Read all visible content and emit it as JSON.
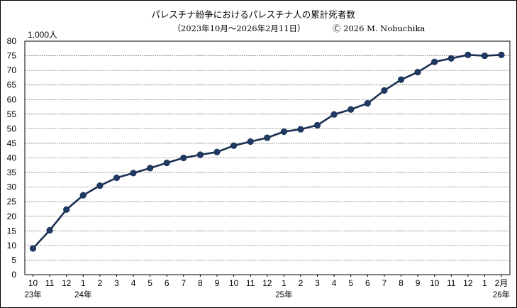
{
  "colors": {
    "line": "#1a2f52",
    "marker": "#1f3a63",
    "grid": "#8a8a8a",
    "axis": "#000000",
    "background": "#ffffff"
  },
  "chart_data": {
    "type": "line",
    "title": "パレスチナ紛争におけるパレスチナ人の累計死者数",
    "subtitle": "（2023年10月～2026年2月11日）",
    "copyright": "Ⓒ 2026  M. Nobuchika",
    "ylabel": "1,000人",
    "xlabel": "",
    "ylim": [
      0,
      80
    ],
    "ytick_step": 5,
    "y_ticks": [
      "0",
      "5",
      "10",
      "15",
      "20",
      "25",
      "30",
      "35",
      "40",
      "45",
      "50",
      "55",
      "60",
      "65",
      "70",
      "75",
      "80"
    ],
    "grid": true,
    "legend": "none",
    "categories": [
      "10",
      "11",
      "12",
      "1",
      "2",
      "3",
      "4",
      "5",
      "6",
      "7",
      "8",
      "9",
      "10",
      "11",
      "12",
      "1",
      "2",
      "3",
      "4",
      "5",
      "6",
      "7",
      "8",
      "9",
      "10",
      "11",
      "12",
      "1",
      "2月"
    ],
    "year_labels": [
      {
        "index": 0,
        "label": "23年"
      },
      {
        "index": 3,
        "label": "24年"
      },
      {
        "index": 15,
        "label": "25年"
      },
      {
        "index": 28,
        "label": "26年"
      }
    ],
    "series": [
      {
        "values": [
          9.0,
          15.2,
          22.3,
          27.2,
          30.5,
          33.2,
          34.8,
          36.5,
          38.3,
          40.0,
          41.1,
          42.0,
          44.2,
          45.6,
          46.9,
          49.0,
          49.8,
          51.2,
          54.9,
          56.6,
          58.7,
          63.1,
          66.8,
          69.4,
          72.9,
          74.1,
          75.3,
          75.0,
          75.3
        ]
      }
    ]
  }
}
